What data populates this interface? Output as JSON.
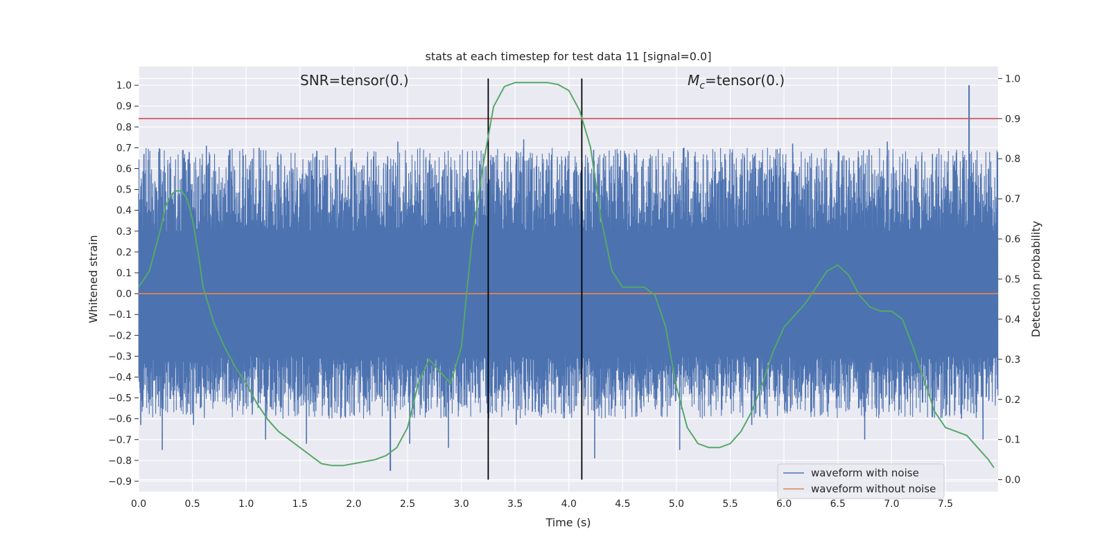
{
  "chart_data": {
    "type": "line",
    "title": "stats at each timestep for test data 11 [signal=0.0]",
    "xlabel": "Time (s)",
    "ylabel_left": "Whitened strain",
    "ylabel_right": "Detection probability",
    "xlim": [
      0.0,
      7.99
    ],
    "ylim_left": [
      -0.95,
      1.09
    ],
    "ylim_right": [
      -0.03,
      1.03
    ],
    "xticks": [
      "0.0",
      "0.5",
      "1.0",
      "1.5",
      "2.0",
      "2.5",
      "3.0",
      "3.5",
      "4.0",
      "4.5",
      "5.0",
      "5.5",
      "6.0",
      "6.5",
      "7.0",
      "7.5"
    ],
    "yticks_left": [
      "−0.9",
      "−0.8",
      "−0.7",
      "−0.6",
      "−0.5",
      "−0.4",
      "−0.3",
      "−0.2",
      "−0.1",
      "0.0",
      "0.1",
      "0.2",
      "0.3",
      "0.4",
      "0.5",
      "0.6",
      "0.7",
      "0.8",
      "0.9",
      "1.0"
    ],
    "yticks_right": [
      "0.0",
      "0.1",
      "0.2",
      "0.3",
      "0.4",
      "0.5",
      "0.6",
      "0.7",
      "0.8",
      "0.9",
      "1.0"
    ],
    "grid": true,
    "legend_position": "lower-right",
    "annotations": {
      "snr_text": "SNR=tensor(0.)",
      "mc_symbol": "M",
      "mc_subscript": "c",
      "mc_value": "=tensor(0.)"
    },
    "threshold_line": {
      "axis": "right",
      "y": 0.9,
      "color": "#c44e52"
    },
    "vertical_lines": [
      3.25,
      4.12
    ],
    "series": [
      {
        "name": "waveform with noise",
        "axis": "left",
        "color": "#4c72b0",
        "description_stats": {
          "typical_upper": [
            0.3,
            0.7
          ],
          "typical_lower": [
            -0.6,
            -0.3
          ],
          "max": 1.0,
          "max_at": 7.72,
          "min": -0.85,
          "min_at": 2.34
        },
        "peaks": [
          [
            0.05,
            0.67
          ],
          [
            0.42,
            0.65
          ],
          [
            0.47,
            0.68
          ],
          [
            0.63,
            0.71
          ],
          [
            1.12,
            0.7
          ],
          [
            1.83,
            0.7
          ],
          [
            2.41,
            0.73
          ],
          [
            3.25,
            0.68
          ],
          [
            3.58,
            0.74
          ],
          [
            4.23,
            0.69
          ],
          [
            4.47,
            0.61
          ],
          [
            5.07,
            0.7
          ],
          [
            5.45,
            0.67
          ],
          [
            6.08,
            0.72
          ],
          [
            6.22,
            0.63
          ],
          [
            6.58,
            0.64
          ],
          [
            6.96,
            0.73
          ],
          [
            7.22,
            0.62
          ],
          [
            7.38,
            0.67
          ],
          [
            7.72,
            1.0
          ],
          [
            7.9,
            0.6
          ]
        ],
        "troughs": [
          [
            0.02,
            -0.63
          ],
          [
            0.22,
            -0.75
          ],
          [
            0.51,
            -0.63
          ],
          [
            1.18,
            -0.7
          ],
          [
            1.56,
            -0.72
          ],
          [
            2.34,
            -0.85
          ],
          [
            2.52,
            -0.72
          ],
          [
            2.88,
            -0.74
          ],
          [
            3.51,
            -0.63
          ],
          [
            4.24,
            -0.79
          ],
          [
            5.03,
            -0.75
          ],
          [
            5.7,
            -0.63
          ],
          [
            6.35,
            -0.58
          ],
          [
            6.75,
            -0.7
          ],
          [
            7.65,
            -0.6
          ],
          [
            7.85,
            -0.7
          ]
        ]
      },
      {
        "name": "waveform without noise",
        "axis": "left",
        "color": "#dd8452",
        "x": [
          0.0,
          7.99
        ],
        "y": [
          0.0,
          0.0
        ]
      },
      {
        "axis": "right",
        "color": "#55a868",
        "x": [
          0.0,
          0.1,
          0.2,
          0.25,
          0.3,
          0.35,
          0.4,
          0.45,
          0.5,
          0.55,
          0.6,
          0.7,
          0.8,
          0.9,
          1.0,
          1.1,
          1.2,
          1.3,
          1.4,
          1.5,
          1.6,
          1.7,
          1.8,
          1.9,
          2.0,
          2.1,
          2.2,
          2.3,
          2.4,
          2.5,
          2.6,
          2.7,
          2.8,
          2.9,
          3.0,
          3.1,
          3.2,
          3.3,
          3.4,
          3.5,
          3.6,
          3.7,
          3.8,
          3.9,
          4.0,
          4.1,
          4.2,
          4.3,
          4.4,
          4.5,
          4.6,
          4.7,
          4.8,
          4.9,
          5.0,
          5.1,
          5.2,
          5.3,
          5.4,
          5.5,
          5.6,
          5.7,
          5.8,
          5.9,
          6.0,
          6.1,
          6.2,
          6.3,
          6.4,
          6.5,
          6.6,
          6.7,
          6.8,
          6.9,
          7.0,
          7.1,
          7.2,
          7.3,
          7.4,
          7.5,
          7.6,
          7.7,
          7.8,
          7.9,
          7.95
        ],
        "y": [
          0.48,
          0.52,
          0.62,
          0.68,
          0.71,
          0.72,
          0.72,
          0.7,
          0.65,
          0.57,
          0.48,
          0.39,
          0.33,
          0.28,
          0.24,
          0.19,
          0.15,
          0.12,
          0.1,
          0.08,
          0.06,
          0.04,
          0.035,
          0.035,
          0.04,
          0.045,
          0.05,
          0.06,
          0.08,
          0.13,
          0.24,
          0.3,
          0.27,
          0.24,
          0.33,
          0.6,
          0.78,
          0.93,
          0.98,
          0.99,
          0.99,
          0.99,
          0.99,
          0.985,
          0.97,
          0.92,
          0.83,
          0.65,
          0.52,
          0.48,
          0.48,
          0.48,
          0.46,
          0.38,
          0.23,
          0.13,
          0.09,
          0.08,
          0.08,
          0.09,
          0.12,
          0.17,
          0.24,
          0.32,
          0.38,
          0.41,
          0.44,
          0.48,
          0.52,
          0.535,
          0.51,
          0.46,
          0.43,
          0.42,
          0.42,
          0.4,
          0.33,
          0.25,
          0.17,
          0.13,
          0.12,
          0.11,
          0.08,
          0.05,
          0.03
        ]
      }
    ]
  }
}
